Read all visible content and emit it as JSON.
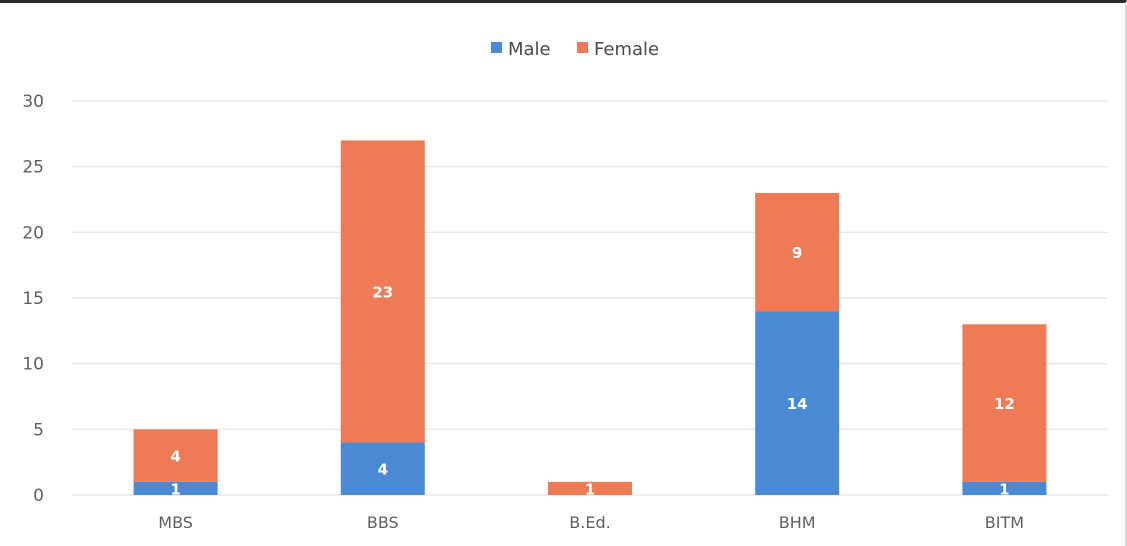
{
  "chart_data": {
    "type": "bar",
    "stacked": true,
    "categories": [
      "MBS",
      "BBS",
      "B.Ed.",
      "BHM",
      "BITM"
    ],
    "series": [
      {
        "name": "Male",
        "color": "#4a8ad4",
        "values": [
          1,
          4,
          0,
          14,
          1
        ],
        "labels": [
          "1",
          "4",
          "",
          "14",
          "1"
        ]
      },
      {
        "name": "Female",
        "color": "#ee7a56",
        "values": [
          4,
          23,
          1,
          9,
          12
        ],
        "labels": [
          "4",
          "23",
          "1",
          "9",
          "12"
        ]
      }
    ],
    "ylim": [
      0,
      30
    ],
    "yticks": [
      "0",
      "5",
      "10",
      "15",
      "20",
      "25",
      "30"
    ],
    "legend_position": "top-center",
    "grid": true,
    "title": "",
    "xlabel": "",
    "ylabel": ""
  }
}
